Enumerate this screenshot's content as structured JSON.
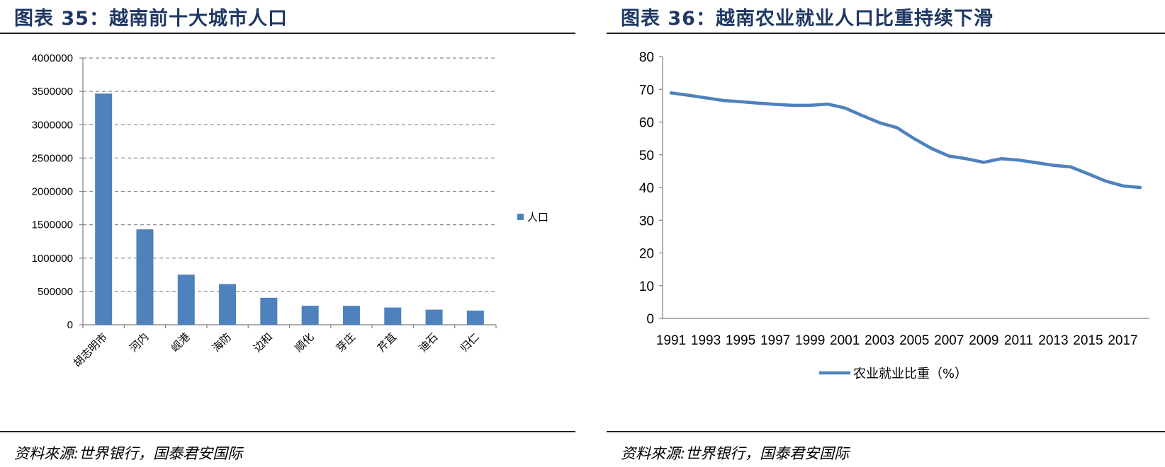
{
  "left": {
    "title": "图表 35：越南前十大城市人口",
    "source": "资料來源:世界银行，国泰君安国际"
  },
  "right": {
    "title": "图表 36：越南农业就业人口比重持续下滑",
    "source": "资料來源:世界银行，国泰君安国际"
  },
  "chart_data": [
    {
      "type": "bar",
      "categories": [
        "胡志明市",
        "河内",
        "岘港",
        "海防",
        "边和",
        "顺化",
        "芽庄",
        "芹苴",
        "迪石",
        "归仁"
      ],
      "series": [
        {
          "name": "人口",
          "values": [
            3467000,
            1431000,
            752000,
            611000,
            405000,
            286000,
            284000,
            259000,
            227000,
            213000
          ]
        }
      ],
      "yticks": [
        "0",
        "500000",
        "1000000",
        "1500000",
        "2000000",
        "2500000",
        "3000000",
        "3500000",
        "4000000"
      ],
      "ylim": [
        0,
        4000000
      ],
      "grid": "dashed-horizontal",
      "legend": "right",
      "color": "#4f81bd"
    },
    {
      "type": "line",
      "x": [
        1991,
        1992,
        1993,
        1994,
        1995,
        1996,
        1997,
        1998,
        1999,
        2000,
        2001,
        2002,
        2003,
        2004,
        2005,
        2006,
        2007,
        2008,
        2009,
        2010,
        2011,
        2012,
        2013,
        2014,
        2015,
        2016,
        2017,
        2018
      ],
      "xticks": [
        "1991",
        "1993",
        "1995",
        "1997",
        "1999",
        "2001",
        "2003",
        "2005",
        "2007",
        "2009",
        "2011",
        "2013",
        "2015",
        "2017"
      ],
      "series": [
        {
          "name": "农业就业比重（%）",
          "values": [
            68.9,
            68.2,
            67.4,
            66.6,
            66.2,
            65.8,
            65.4,
            65.1,
            65.1,
            65.5,
            64.3,
            62.0,
            59.8,
            58.3,
            54.9,
            51.9,
            49.6,
            48.8,
            47.7,
            48.8,
            48.4,
            47.6,
            46.8,
            46.3,
            44.2,
            42.0,
            40.5,
            40.0
          ]
        }
      ],
      "yticks": [
        "0",
        "10",
        "20",
        "30",
        "40",
        "50",
        "60",
        "70",
        "80"
      ],
      "ylim": [
        0,
        80
      ],
      "grid": "none",
      "legend": "bottom",
      "color": "#4f81bd"
    }
  ]
}
